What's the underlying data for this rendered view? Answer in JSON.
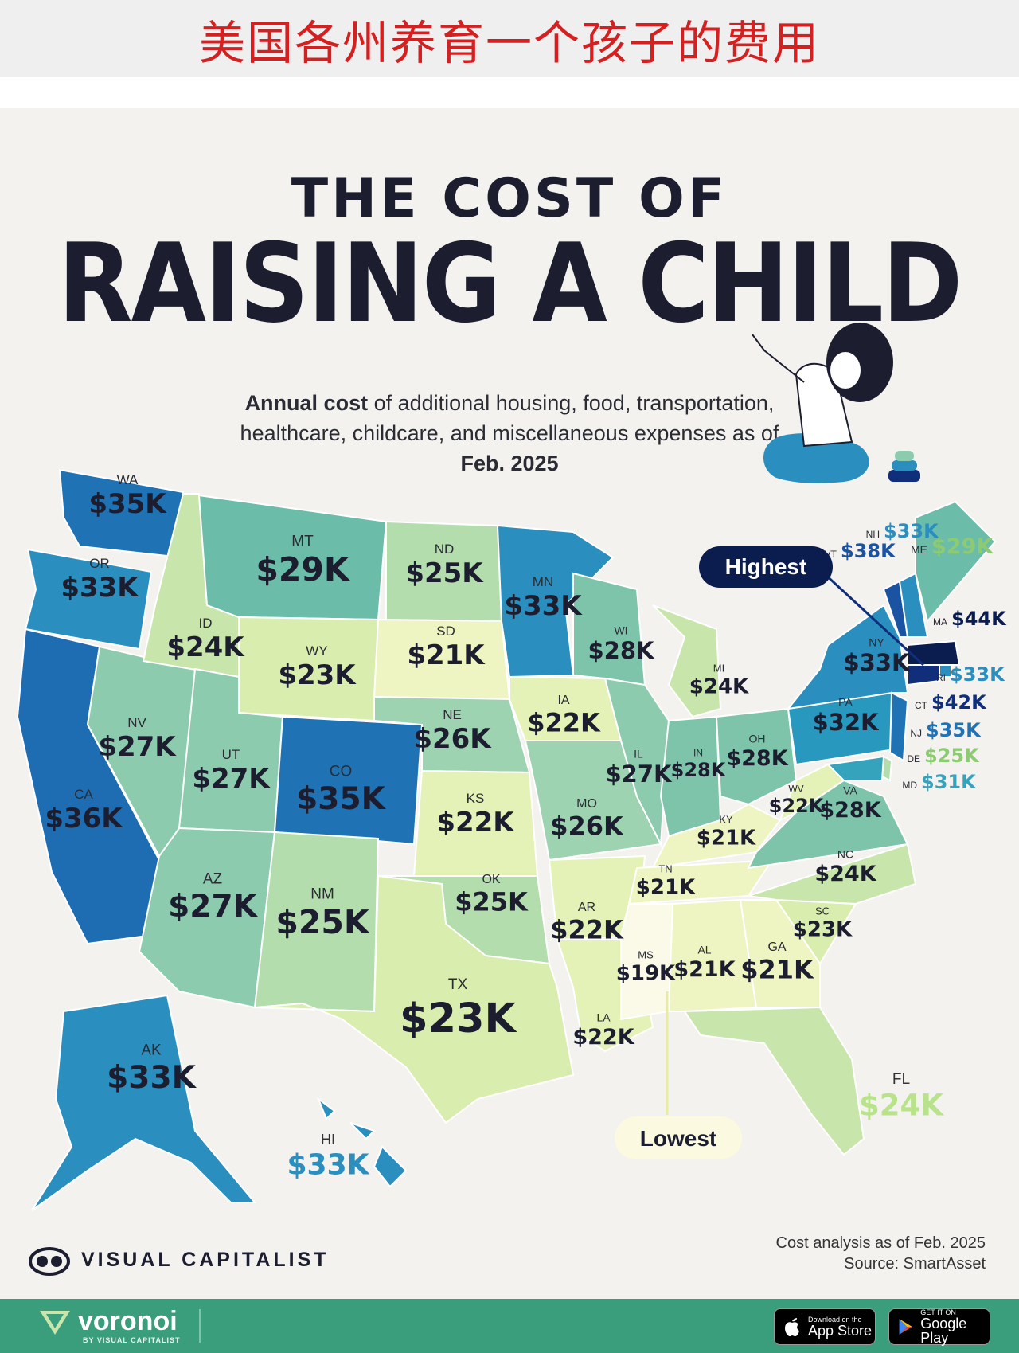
{
  "banner": {
    "text": "美国各州养育一个孩子的费用"
  },
  "header": {
    "title_line1": "THE COST OF",
    "title_line2": "RAISING A CHILD",
    "subtitle_bold1": "Annual cost",
    "subtitle_part1": " of additional housing, food, transportation, healthcare, childcare, and miscellaneous expenses as of ",
    "subtitle_bold2": "Feb. 2025"
  },
  "callouts": {
    "highest": "Highest",
    "lowest": "Lowest"
  },
  "colors": {
    "c19": "#fbfae8",
    "c21": "#eef5c2",
    "c22": "#e4f1b7",
    "c23": "#d9edae",
    "c24": "#c8e6ab",
    "c25": "#b3ddad",
    "c26": "#9dd3b1",
    "c27": "#8ccbae",
    "c28": "#7dc4ab",
    "c29": "#6bbca9",
    "c31": "#36a3bd",
    "c32": "#2898bf",
    "c33": "#2a8fbe",
    "c35": "#1f73b5",
    "c36": "#1e6db3",
    "c38": "#1a53a1",
    "c42": "#112e7a",
    "c44": "#0b1c4e",
    "accent_green": "#3a9e7d"
  },
  "chart_data": {
    "type": "choropleth",
    "title": "THE COST OF RAISING A CHILD",
    "unit": "USD thousands per year",
    "states": [
      {
        "abbr": "WA",
        "label": "$35K",
        "value": 35
      },
      {
        "abbr": "OR",
        "label": "$33K",
        "value": 33
      },
      {
        "abbr": "CA",
        "label": "$36K",
        "value": 36
      },
      {
        "abbr": "NV",
        "label": "$27K",
        "value": 27
      },
      {
        "abbr": "ID",
        "label": "$24K",
        "value": 24
      },
      {
        "abbr": "MT",
        "label": "$29K",
        "value": 29
      },
      {
        "abbr": "WY",
        "label": "$23K",
        "value": 23
      },
      {
        "abbr": "UT",
        "label": "$27K",
        "value": 27
      },
      {
        "abbr": "AZ",
        "label": "$27K",
        "value": 27
      },
      {
        "abbr": "CO",
        "label": "$35K",
        "value": 35
      },
      {
        "abbr": "NM",
        "label": "$25K",
        "value": 25
      },
      {
        "abbr": "ND",
        "label": "$25K",
        "value": 25
      },
      {
        "abbr": "SD",
        "label": "$21K",
        "value": 21
      },
      {
        "abbr": "NE",
        "label": "$26K",
        "value": 26
      },
      {
        "abbr": "KS",
        "label": "$22K",
        "value": 22
      },
      {
        "abbr": "OK",
        "label": "$25K",
        "value": 25
      },
      {
        "abbr": "TX",
        "label": "$23K",
        "value": 23
      },
      {
        "abbr": "MN",
        "label": "$33K",
        "value": 33
      },
      {
        "abbr": "IA",
        "label": "$22K",
        "value": 22
      },
      {
        "abbr": "MO",
        "label": "$26K",
        "value": 26
      },
      {
        "abbr": "AR",
        "label": "$22K",
        "value": 22
      },
      {
        "abbr": "LA",
        "label": "$22K",
        "value": 22
      },
      {
        "abbr": "WI",
        "label": "$28K",
        "value": 28
      },
      {
        "abbr": "IL",
        "label": "$27K",
        "value": 27
      },
      {
        "abbr": "MI",
        "label": "$24K",
        "value": 24
      },
      {
        "abbr": "IN",
        "label": "$28K",
        "value": 28
      },
      {
        "abbr": "OH",
        "label": "$28K",
        "value": 28
      },
      {
        "abbr": "KY",
        "label": "$21K",
        "value": 21
      },
      {
        "abbr": "TN",
        "label": "$21K",
        "value": 21
      },
      {
        "abbr": "MS",
        "label": "$19K",
        "value": 19
      },
      {
        "abbr": "AL",
        "label": "$21K",
        "value": 21
      },
      {
        "abbr": "GA",
        "label": "$21K",
        "value": 21
      },
      {
        "abbr": "FL",
        "label": "$24K",
        "value": 24
      },
      {
        "abbr": "SC",
        "label": "$23K",
        "value": 23
      },
      {
        "abbr": "NC",
        "label": "$24K",
        "value": 24
      },
      {
        "abbr": "VA",
        "label": "$28K",
        "value": 28
      },
      {
        "abbr": "WV",
        "label": "$22K",
        "value": 22
      },
      {
        "abbr": "PA",
        "label": "$32K",
        "value": 32
      },
      {
        "abbr": "NY",
        "label": "$33K",
        "value": 33
      },
      {
        "abbr": "VT",
        "label": "$38K",
        "value": 38
      },
      {
        "abbr": "NH",
        "label": "$33K",
        "value": 33
      },
      {
        "abbr": "ME",
        "label": "$29K",
        "value": 29
      },
      {
        "abbr": "MA",
        "label": "$44K",
        "value": 44
      },
      {
        "abbr": "RI",
        "label": "$33K",
        "value": 33
      },
      {
        "abbr": "CT",
        "label": "$42K",
        "value": 42
      },
      {
        "abbr": "NJ",
        "label": "$35K",
        "value": 35
      },
      {
        "abbr": "DE",
        "label": "$25K",
        "value": 25
      },
      {
        "abbr": "MD",
        "label": "$31K",
        "value": 31
      },
      {
        "abbr": "AK",
        "label": "$33K",
        "value": 33
      },
      {
        "abbr": "HI",
        "label": "$33K",
        "value": 33
      }
    ]
  },
  "footer": {
    "brand": "VISUAL CAPITALIST",
    "note_line1": "Cost analysis as of Feb. 2025",
    "note_line2": "Source: SmartAsset",
    "voronoi_name": "voronoi",
    "voronoi_sub": "BY VISUAL CAPITALIST",
    "appstore_small": "Download on the",
    "appstore_big": "App Store",
    "googleplay_small": "GET IT ON",
    "googleplay_big": "Google Play"
  }
}
